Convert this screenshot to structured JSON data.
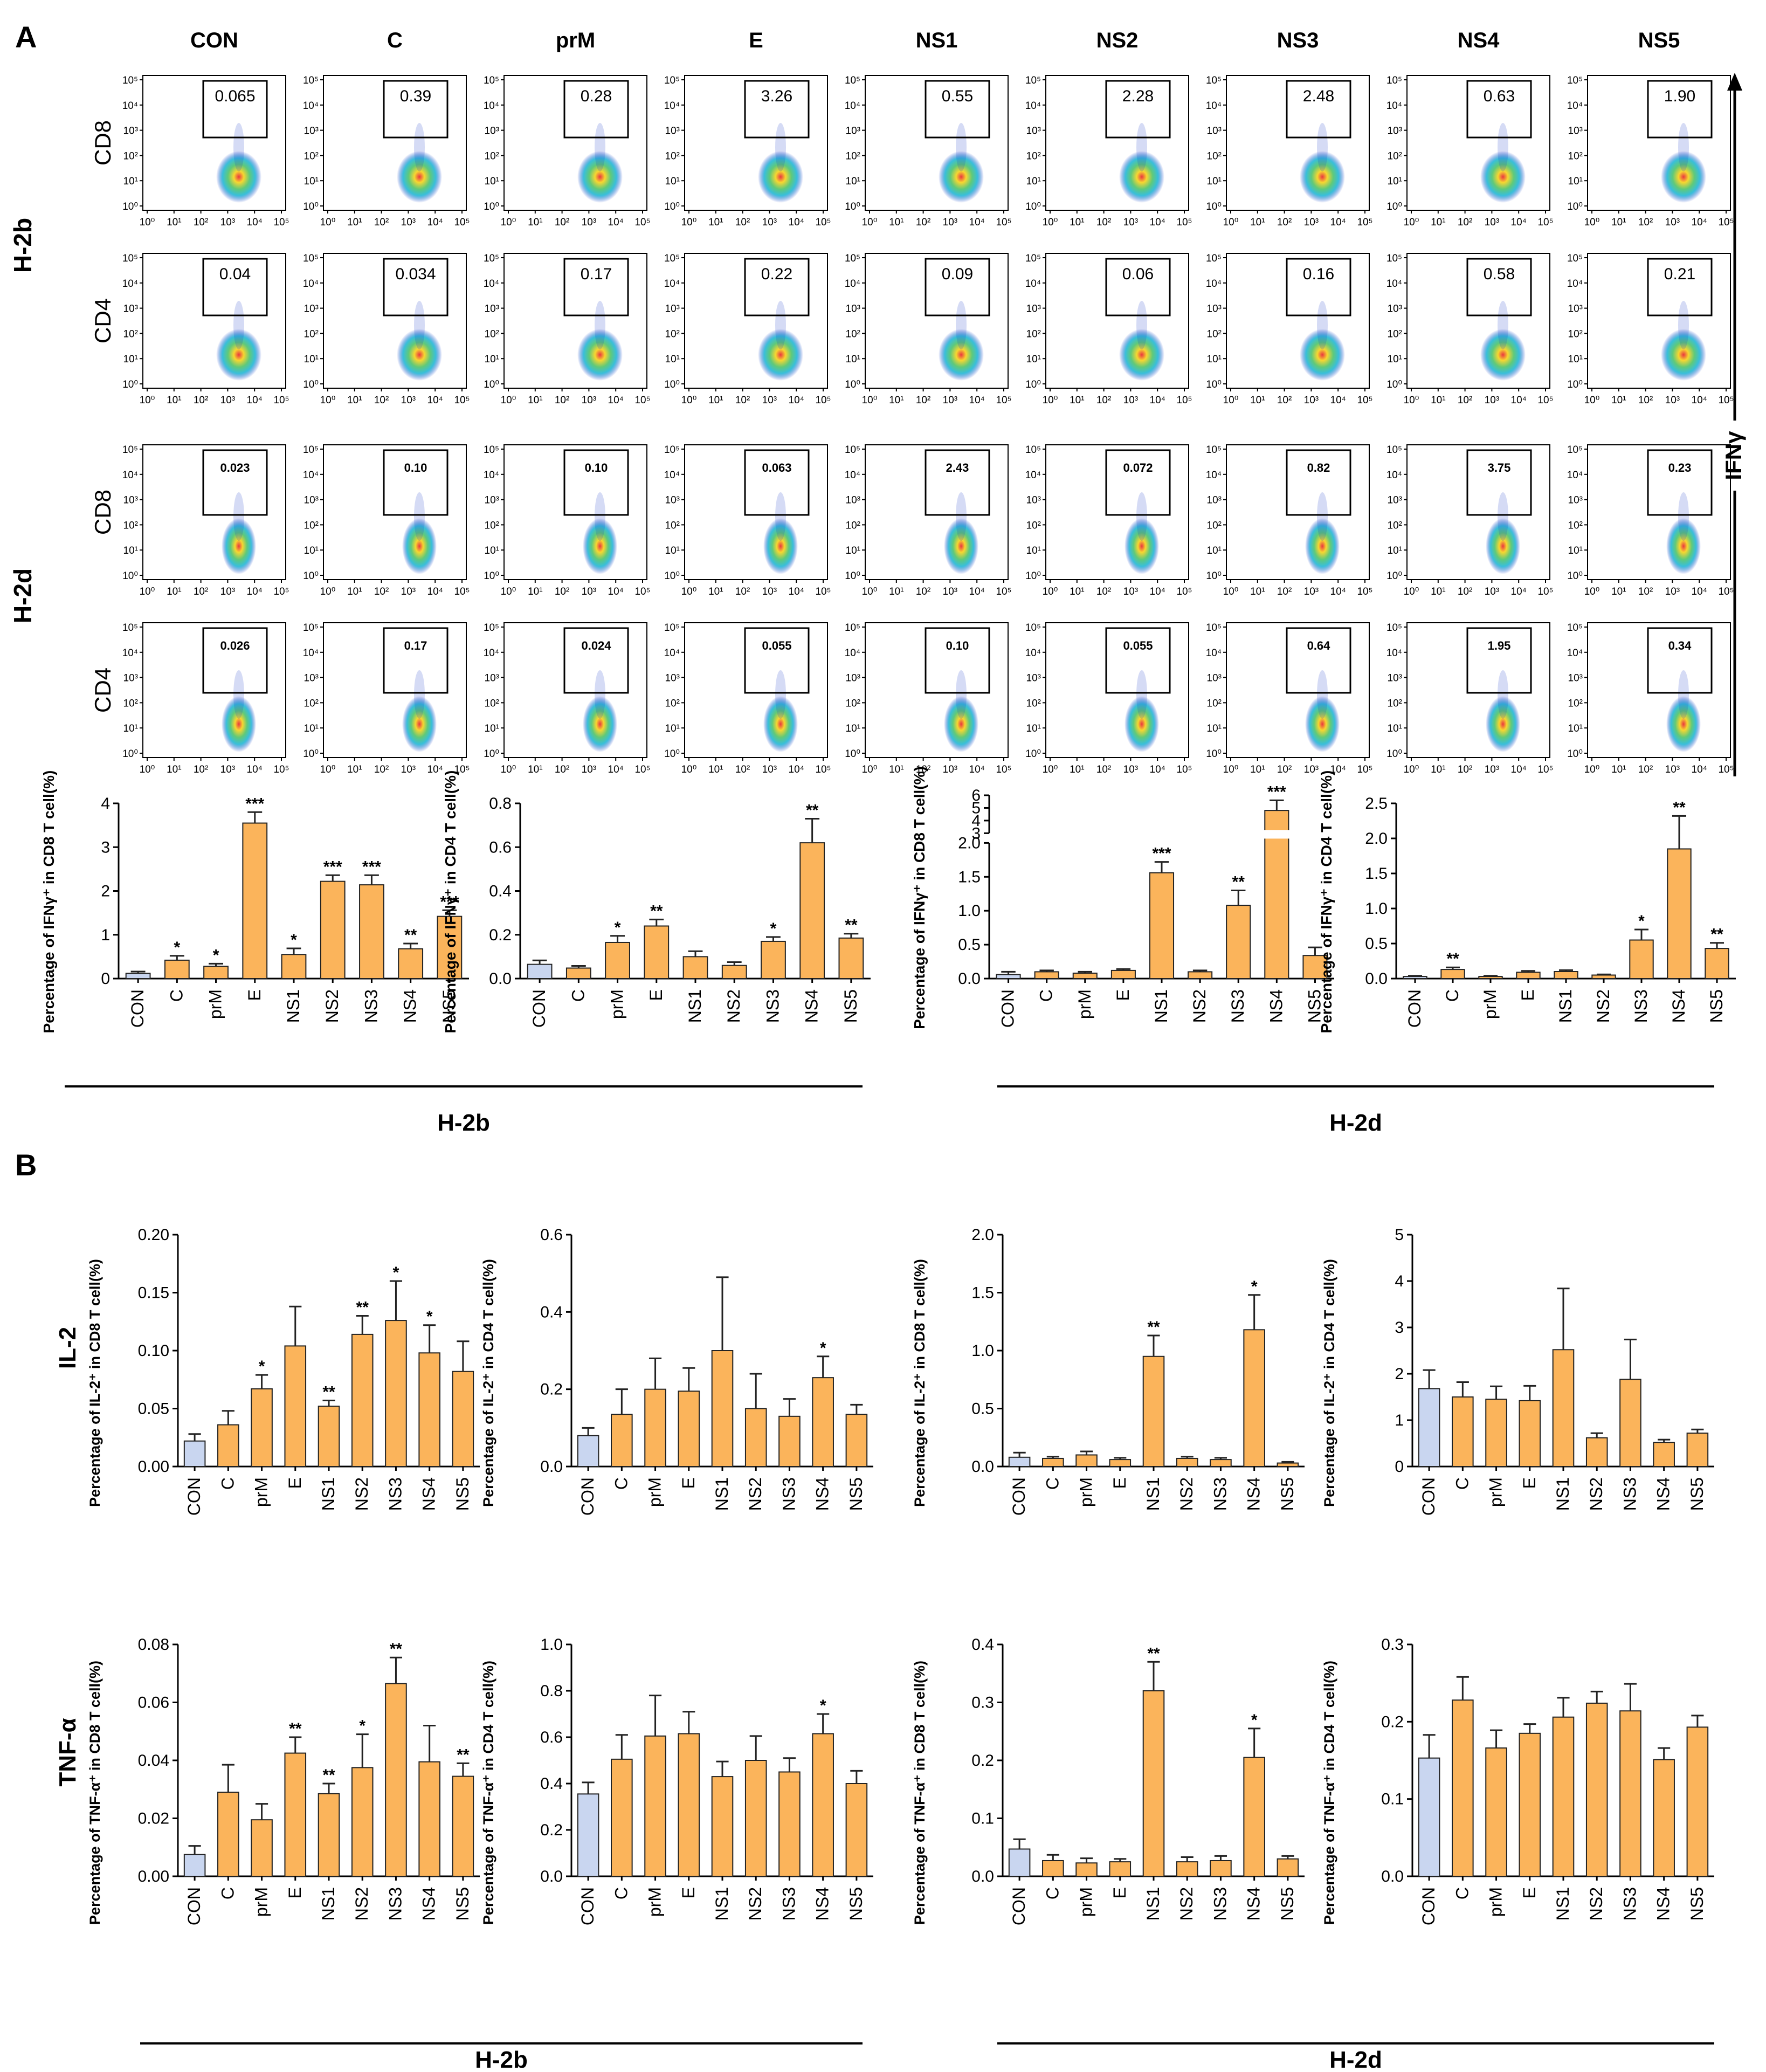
{
  "panel_labels": {
    "a": "A",
    "b": "B"
  },
  "flow": {
    "columns": [
      "CON",
      "C",
      "prM",
      "E",
      "NS1",
      "NS2",
      "NS3",
      "NS4",
      "NS5"
    ],
    "y_axis_label": "IFNγ",
    "groups": [
      {
        "name": "H-2b",
        "rows": [
          {
            "label": "CD8",
            "gates": [
              "0.065",
              "0.39",
              "0.28",
              "3.26",
              "0.55",
              "2.28",
              "2.48",
              "0.63",
              "1.90"
            ]
          },
          {
            "label": "CD4",
            "gates": [
              "0.04",
              "0.034",
              "0.17",
              "0.22",
              "0.09",
              "0.06",
              "0.16",
              "0.58",
              "0.21"
            ]
          }
        ]
      },
      {
        "name": "H-2d",
        "rows": [
          {
            "label": "CD8",
            "gates": [
              "0.023",
              "0.10",
              "0.10",
              "0.063",
              "2.43",
              "0.072",
              "0.82",
              "3.75",
              "0.23"
            ]
          },
          {
            "label": "CD4",
            "gates": [
              "0.026",
              "0.17",
              "0.024",
              "0.055",
              "0.10",
              "0.055",
              "0.64",
              "1.95",
              "0.34"
            ]
          }
        ]
      }
    ],
    "axis_ticks": [
      "10⁰",
      "10¹",
      "10²",
      "10³",
      "10⁴",
      "10⁵"
    ]
  },
  "strain_labels": {
    "left": "H-2b",
    "right": "H-2d"
  },
  "row_labels": {
    "il2": "IL-2",
    "tnf": "TNF-α"
  },
  "colors": {
    "bar": "#FBB45B",
    "con_bar": "#C9D6F0",
    "axis": "#222222"
  },
  "chart_data": [
    {
      "id": "a1",
      "type": "bar",
      "ylabel": "Percentage of IFNγ⁺ in CD8 T cell(%)",
      "categories": [
        "CON",
        "C",
        "prM",
        "E",
        "NS1",
        "NS2",
        "NS3",
        "NS4",
        "NS5"
      ],
      "values": [
        0.12,
        0.42,
        0.28,
        3.55,
        0.55,
        2.22,
        2.14,
        0.68,
        1.42
      ],
      "errors": [
        0.04,
        0.1,
        0.06,
        0.25,
        0.14,
        0.14,
        0.22,
        0.12,
        0.14
      ],
      "stars": [
        "",
        "*",
        "*",
        "***",
        "*",
        "***",
        "***",
        "**",
        "***"
      ],
      "ylim": [
        0,
        4
      ],
      "yticks": [
        "0",
        "1",
        "2",
        "3",
        "4"
      ]
    },
    {
      "id": "a2",
      "type": "bar",
      "ylabel": "Percentage of IFNγ⁺ in CD4 T cell(%)",
      "categories": [
        "CON",
        "C",
        "prM",
        "E",
        "NS1",
        "NS2",
        "NS3",
        "NS4",
        "NS5"
      ],
      "values": [
        0.065,
        0.048,
        0.165,
        0.24,
        0.1,
        0.06,
        0.17,
        0.62,
        0.185
      ],
      "errors": [
        0.018,
        0.01,
        0.03,
        0.03,
        0.025,
        0.015,
        0.02,
        0.11,
        0.02
      ],
      "stars": [
        "",
        "",
        "*",
        "**",
        "",
        "",
        "*",
        "**",
        "**"
      ],
      "ylim": [
        0,
        0.8
      ],
      "yticks": [
        "0.0",
        "0.2",
        "0.4",
        "0.6",
        "0.8"
      ]
    },
    {
      "id": "a3",
      "type": "bar",
      "ylabel": "Percentage of IFNγ⁺ in CD8 T cell(%)",
      "categories": [
        "CON",
        "C",
        "prM",
        "E",
        "NS1",
        "NS2",
        "NS3",
        "NS4",
        "NS5"
      ],
      "values": [
        0.06,
        0.1,
        0.08,
        0.12,
        1.56,
        0.1,
        1.08,
        4.8,
        0.34
      ],
      "errors": [
        0.04,
        0.02,
        0.02,
        0.02,
        0.16,
        0.02,
        0.22,
        0.8,
        0.12
      ],
      "stars": [
        "",
        "",
        "",
        "",
        "***",
        "",
        "**",
        "***",
        ""
      ],
      "ylim": [
        0,
        6
      ],
      "yticks": [
        "0.0",
        "0.5",
        "1.0",
        "1.5",
        "2.0",
        "3",
        "4",
        "5",
        "6"
      ],
      "axis_break": [
        2,
        3
      ]
    },
    {
      "id": "a4",
      "type": "bar",
      "ylabel": "Percentage of IFNγ⁺ in CD4 T cell(%)",
      "categories": [
        "CON",
        "C",
        "prM",
        "E",
        "NS1",
        "NS2",
        "NS3",
        "NS4",
        "NS5"
      ],
      "values": [
        0.03,
        0.13,
        0.03,
        0.09,
        0.1,
        0.05,
        0.55,
        1.85,
        0.43
      ],
      "errors": [
        0.01,
        0.03,
        0.01,
        0.02,
        0.02,
        0.01,
        0.15,
        0.47,
        0.08
      ],
      "stars": [
        "",
        "**",
        "",
        "",
        "",
        "",
        "*",
        "**",
        "**"
      ],
      "ylim": [
        0,
        2.5
      ],
      "yticks": [
        "0.0",
        "0.5",
        "1.0",
        "1.5",
        "2.0",
        "2.5"
      ]
    },
    {
      "id": "b1",
      "type": "bar",
      "ylabel": "Percentage of IL-2⁺ in CD8 T cell(%)",
      "categories": [
        "CON",
        "C",
        "prM",
        "E",
        "NS1",
        "NS2",
        "NS3",
        "NS4",
        "NS5"
      ],
      "values": [
        0.022,
        0.036,
        0.067,
        0.104,
        0.052,
        0.114,
        0.126,
        0.098,
        0.082
      ],
      "errors": [
        0.006,
        0.012,
        0.012,
        0.034,
        0.005,
        0.016,
        0.034,
        0.024,
        0.026
      ],
      "stars": [
        "",
        "",
        "*",
        "",
        "**",
        "**",
        "*",
        "*",
        ""
      ],
      "ylim": [
        0,
        0.2
      ],
      "yticks": [
        "0.00",
        "0.05",
        "0.10",
        "0.15",
        "0.20"
      ]
    },
    {
      "id": "b2",
      "type": "bar",
      "ylabel": "Percentage of IL-2⁺ in CD4 T cell(%)",
      "categories": [
        "CON",
        "C",
        "prM",
        "E",
        "NS1",
        "NS2",
        "NS3",
        "NS4",
        "NS5"
      ],
      "values": [
        0.08,
        0.135,
        0.2,
        0.195,
        0.3,
        0.15,
        0.13,
        0.23,
        0.135
      ],
      "errors": [
        0.02,
        0.065,
        0.08,
        0.06,
        0.19,
        0.09,
        0.045,
        0.055,
        0.025
      ],
      "stars": [
        "",
        "",
        "",
        "",
        "",
        "",
        "",
        "*",
        ""
      ],
      "ylim": [
        0,
        0.6
      ],
      "yticks": [
        "0.0",
        "0.2",
        "0.4",
        "0.6"
      ]
    },
    {
      "id": "b3",
      "type": "bar",
      "ylabel": "Percentage of IL-2⁺ in CD8 T cell(%)",
      "categories": [
        "CON",
        "C",
        "prM",
        "E",
        "NS1",
        "NS2",
        "NS3",
        "NS4",
        "NS5"
      ],
      "values": [
        0.08,
        0.07,
        0.1,
        0.06,
        0.95,
        0.07,
        0.06,
        1.18,
        0.03
      ],
      "errors": [
        0.04,
        0.015,
        0.03,
        0.015,
        0.18,
        0.015,
        0.015,
        0.3,
        0.01
      ],
      "stars": [
        "",
        "",
        "",
        "",
        "**",
        "",
        "",
        "*",
        ""
      ],
      "ylim": [
        0,
        2.0
      ],
      "yticks": [
        "0.0",
        "0.5",
        "1.0",
        "1.5",
        "2.0"
      ]
    },
    {
      "id": "b4",
      "type": "bar",
      "ylabel": "Percentage of IL-2⁺ in CD4 T cell(%)",
      "categories": [
        "CON",
        "C",
        "prM",
        "E",
        "NS1",
        "NS2",
        "NS3",
        "NS4",
        "NS5"
      ],
      "values": [
        1.68,
        1.5,
        1.45,
        1.42,
        2.52,
        0.62,
        1.88,
        0.52,
        0.72
      ],
      "errors": [
        0.4,
        0.32,
        0.28,
        0.32,
        1.32,
        0.1,
        0.86,
        0.06,
        0.08
      ],
      "stars": [
        "",
        "",
        "",
        "",
        "",
        "",
        "",
        "",
        ""
      ],
      "ylim": [
        0,
        5
      ],
      "yticks": [
        "0",
        "1",
        "2",
        "3",
        "4",
        "5"
      ]
    },
    {
      "id": "c1",
      "type": "bar",
      "ylabel": "Percentage of TNF-α⁺ in CD8 T cell(%)",
      "categories": [
        "CON",
        "C",
        "prM",
        "E",
        "NS1",
        "NS2",
        "NS3",
        "NS4",
        "NS5"
      ],
      "values": [
        0.0075,
        0.029,
        0.0195,
        0.0425,
        0.0285,
        0.0375,
        0.0665,
        0.0395,
        0.0345
      ],
      "errors": [
        0.003,
        0.0095,
        0.0055,
        0.0055,
        0.0035,
        0.0115,
        0.009,
        0.0125,
        0.0045
      ],
      "stars": [
        "",
        "",
        "",
        "**",
        "**",
        "*",
        "**",
        "",
        "**"
      ],
      "ylim": [
        0,
        0.08
      ],
      "yticks": [
        "0.00",
        "0.02",
        "0.04",
        "0.06",
        "0.08"
      ]
    },
    {
      "id": "c2",
      "type": "bar",
      "ylabel": "Percentage of TNF-α⁺ in CD4 T cell(%)",
      "categories": [
        "CON",
        "C",
        "prM",
        "E",
        "NS1",
        "NS2",
        "NS3",
        "NS4",
        "NS5"
      ],
      "values": [
        0.355,
        0.505,
        0.605,
        0.615,
        0.43,
        0.5,
        0.45,
        0.615,
        0.4
      ],
      "errors": [
        0.05,
        0.105,
        0.175,
        0.095,
        0.065,
        0.105,
        0.06,
        0.085,
        0.055
      ],
      "stars": [
        "",
        "",
        "",
        "",
        "",
        "",
        "",
        "*",
        ""
      ],
      "ylim": [
        0,
        1.0
      ],
      "yticks": [
        "0.0",
        "0.2",
        "0.4",
        "0.6",
        "0.8",
        "1.0"
      ]
    },
    {
      "id": "c3",
      "type": "bar",
      "ylabel": "Percentage of TNF-α⁺ in CD8 T cell(%)",
      "categories": [
        "CON",
        "C",
        "prM",
        "E",
        "NS1",
        "NS2",
        "NS3",
        "NS4",
        "NS5"
      ],
      "values": [
        0.047,
        0.027,
        0.023,
        0.025,
        0.32,
        0.025,
        0.027,
        0.205,
        0.03
      ],
      "errors": [
        0.017,
        0.01,
        0.008,
        0.005,
        0.05,
        0.008,
        0.008,
        0.05,
        0.005
      ],
      "stars": [
        "",
        "",
        "",
        "",
        "**",
        "",
        "",
        "*",
        ""
      ],
      "ylim": [
        0,
        0.4
      ],
      "yticks": [
        "0.0",
        "0.1",
        "0.2",
        "0.3",
        "0.4"
      ]
    },
    {
      "id": "c4",
      "type": "bar",
      "ylabel": "Percentage of TNF-α⁺ in CD4 T cell(%)",
      "categories": [
        "CON",
        "C",
        "prM",
        "E",
        "NS1",
        "NS2",
        "NS3",
        "NS4",
        "NS5"
      ],
      "values": [
        0.153,
        0.228,
        0.166,
        0.185,
        0.206,
        0.224,
        0.214,
        0.151,
        0.193
      ],
      "errors": [
        0.03,
        0.03,
        0.023,
        0.012,
        0.025,
        0.015,
        0.035,
        0.015,
        0.015
      ],
      "stars": [
        "",
        "",
        "",
        "",
        "",
        "",
        "",
        "",
        ""
      ],
      "ylim": [
        0,
        0.3
      ],
      "yticks": [
        "0.0",
        "0.1",
        "0.2",
        "0.3"
      ]
    }
  ]
}
